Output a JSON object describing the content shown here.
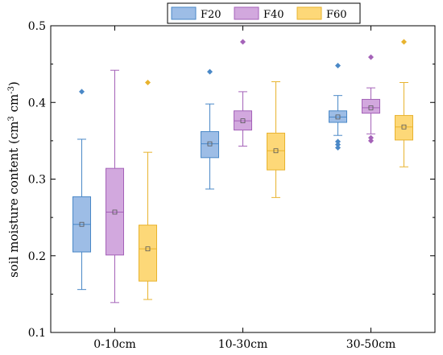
{
  "chart_data": {
    "type": "box",
    "title": "",
    "xlabel": "",
    "ylabel": "soil moisture content (cm³ cm⁻³)",
    "ylabel_parts": {
      "pre": "soil moisture content (cm",
      "sup1": "3",
      "mid": " cm",
      "sup2": "-3",
      "post": ")"
    },
    "ylim": [
      0.1,
      0.5
    ],
    "yticks": [
      "0.1",
      "0.2",
      "0.3",
      "0.4",
      "0.5"
    ],
    "categories": [
      "0-10cm",
      "10-30cm",
      "30-50cm"
    ],
    "legend_position": "top",
    "grid": false,
    "series": [
      {
        "name": "F20",
        "fill": "#9dbde6",
        "stroke": "#4a88c7",
        "boxes": [
          {
            "whisker_low": 0.156,
            "q1": 0.205,
            "median": 0.241,
            "mean": 0.241,
            "q3": 0.277,
            "whisker_high": 0.352,
            "outliers": [
              0.414
            ]
          },
          {
            "whisker_low": 0.287,
            "q1": 0.328,
            "median": 0.346,
            "mean": 0.346,
            "q3": 0.362,
            "whisker_high": 0.398,
            "outliers": [
              0.44
            ]
          },
          {
            "whisker_low": 0.357,
            "q1": 0.374,
            "median": 0.381,
            "mean": 0.381,
            "q3": 0.389,
            "whisker_high": 0.409,
            "outliers": [
              0.448,
              0.349,
              0.345,
              0.341
            ]
          }
        ]
      },
      {
        "name": "F40",
        "fill": "#d2a8de",
        "stroke": "#a462b8",
        "boxes": [
          {
            "whisker_low": 0.139,
            "q1": 0.201,
            "median": 0.257,
            "mean": 0.257,
            "q3": 0.314,
            "whisker_high": 0.442,
            "outliers": []
          },
          {
            "whisker_low": 0.343,
            "q1": 0.364,
            "median": 0.376,
            "mean": 0.376,
            "q3": 0.389,
            "whisker_high": 0.414,
            "outliers": [
              0.479
            ]
          },
          {
            "whisker_low": 0.359,
            "q1": 0.386,
            "median": 0.393,
            "mean": 0.393,
            "q3": 0.404,
            "whisker_high": 0.419,
            "outliers": [
              0.459,
              0.354,
              0.35
            ]
          }
        ]
      },
      {
        "name": "F60",
        "fill": "#fdd878",
        "stroke": "#e8b32e",
        "boxes": [
          {
            "whisker_low": 0.143,
            "q1": 0.167,
            "median": 0.209,
            "mean": 0.209,
            "q3": 0.24,
            "whisker_high": 0.335,
            "outliers": [
              0.426
            ]
          },
          {
            "whisker_low": 0.276,
            "q1": 0.312,
            "median": 0.337,
            "mean": 0.337,
            "q3": 0.36,
            "whisker_high": 0.427,
            "outliers": []
          },
          {
            "whisker_low": 0.316,
            "q1": 0.351,
            "median": 0.368,
            "mean": 0.368,
            "q3": 0.383,
            "whisker_high": 0.426,
            "outliers": [
              0.479
            ]
          }
        ]
      }
    ]
  }
}
